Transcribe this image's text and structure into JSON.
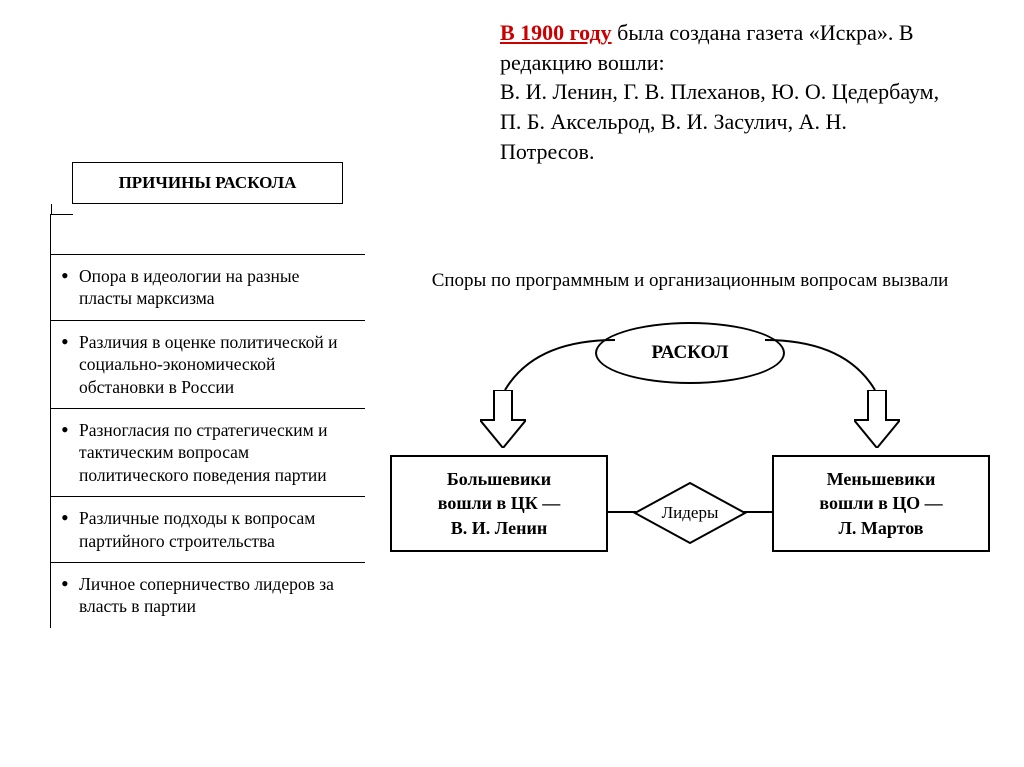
{
  "intro": {
    "year": "В 1900 году",
    "text_after_year": " была создана газета «Искра». В редакцию вошли:",
    "members": "В. И. Ленин, Г. В. Плеханов, Ю. О. Цедербаум, П. Б. Аксельрод, В. И. Засулич, А. Н. Потресов."
  },
  "reasons": {
    "title": "ПРИЧИНЫ РАСКОЛА",
    "items": [
      "Опора в идеологии на раз­ные пласты марксизма",
      "Различия в оценке полити­ческой и социально-эконо­мической обстановки в России",
      "Разногласия по стратегиче­ским и тактическим вопро­сам политического поведе­ния партии",
      "Различные подходы к во­просам партийного строи­тельства",
      "Личное соперничество ли­деров за власть в партии"
    ]
  },
  "flow": {
    "heading": "Споры по программным и организационным вопросам вызвали",
    "split_label": "РАСКОЛ",
    "leaders_label": "Лидеры",
    "left_box": {
      "line1": "Большевики",
      "line2": "вошли в ЦК —",
      "line3": "В. И. Ленин"
    },
    "right_box": {
      "line1": "Меньшевики",
      "line2": "вошли в ЦО —",
      "line3": "Л. Мартов"
    }
  },
  "style": {
    "accent_color": "#cc0000",
    "line_color": "#000000",
    "background": "#ffffff",
    "body_font": "Times New Roman",
    "node_shapes": {
      "split": "ellipse",
      "leaders": "diamond",
      "faction": "rect"
    }
  }
}
